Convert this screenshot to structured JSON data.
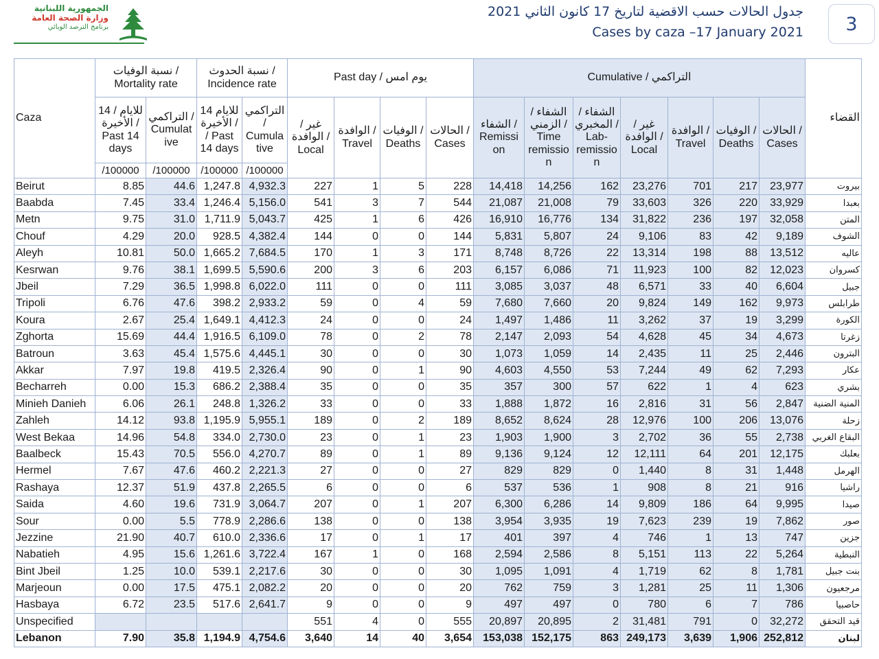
{
  "header": {
    "logo_line1": "الجمهورية اللبنانية",
    "logo_line2": "وزارة الصحة العامة",
    "logo_line3": "برنامج الترصد الوبائي",
    "title_ar": "جدول الحالات حسب الاقضية لتاريخ 17 كانون الثاني 2021",
    "title_en": "Cases by caza –17 January 2021",
    "page_number": "3",
    "logo_color": "#2e8b3e",
    "accent_color": "#d03a2f"
  },
  "table": {
    "headers": {
      "caza": "Caza",
      "mortality_rate": "نسبة الوفيات / Mortality rate",
      "incidence_rate": "نسبة الحدوث / Incidence rate",
      "past_day": "Past day / يوم امس",
      "cumulative": "Cumulative / التراكمي",
      "caza_ar": "القضاء",
      "mort_past14": "14 للايام / الأخيرة / Past 14 days",
      "mort_cumulative": "التراكمي / Cumulat ive",
      "inc_past14": "14 للايام / الأخيرة / Past 14 days",
      "inc_cumulative": "التراكمي / Cumula tive",
      "pd_local": "غير / الوافدة / Local",
      "pd_travel": "الوافدة / Travel",
      "pd_deaths": "الوفيات / Deaths",
      "pd_cases": "الحالات / Cases",
      "cu_remission": "الشفاء / Remissi on",
      "cu_time_remission": "الشفاء / الزمني / Time remissio n",
      "cu_lab_remission": "الشفاء / المخبري / Lab- remissio n",
      "cu_local": "غير / الوافدة / Local",
      "cu_travel": "الوافدة / Travel",
      "cu_deaths": "الوفيات / Deaths",
      "cu_cases": "الحالات / Cases",
      "per100k": "/100000"
    },
    "rows": [
      {
        "caza": "Beirut",
        "mp14": "8.85",
        "mcum": "44.6",
        "ip14": "1,247.8",
        "icum": "4,932.3",
        "pdl": "227",
        "pdt": "1",
        "pdd": "5",
        "pdc": "228",
        "rem": "14,418",
        "trem": "14,256",
        "lrem": "162",
        "loc": "23,276",
        "trv": "701",
        "dth": "217",
        "cas": "23,977",
        "ar": "بيروت"
      },
      {
        "caza": "Baabda",
        "mp14": "7.45",
        "mcum": "33.4",
        "ip14": "1,246.4",
        "icum": "5,156.0",
        "pdl": "541",
        "pdt": "3",
        "pdd": "7",
        "pdc": "544",
        "rem": "21,087",
        "trem": "21,008",
        "lrem": "79",
        "loc": "33,603",
        "trv": "326",
        "dth": "220",
        "cas": "33,929",
        "ar": "بعبدا"
      },
      {
        "caza": "Metn",
        "mp14": "9.75",
        "mcum": "31.0",
        "ip14": "1,711.9",
        "icum": "5,043.7",
        "pdl": "425",
        "pdt": "1",
        "pdd": "6",
        "pdc": "426",
        "rem": "16,910",
        "trem": "16,776",
        "lrem": "134",
        "loc": "31,822",
        "trv": "236",
        "dth": "197",
        "cas": "32,058",
        "ar": "المتن"
      },
      {
        "caza": "Chouf",
        "mp14": "4.29",
        "mcum": "20.0",
        "ip14": "928.5",
        "icum": "4,382.4",
        "pdl": "144",
        "pdt": "0",
        "pdd": "0",
        "pdc": "144",
        "rem": "5,831",
        "trem": "5,807",
        "lrem": "24",
        "loc": "9,106",
        "trv": "83",
        "dth": "42",
        "cas": "9,189",
        "ar": "الشوف"
      },
      {
        "caza": "Aleyh",
        "mp14": "10.81",
        "mcum": "50.0",
        "ip14": "1,665.2",
        "icum": "7,684.5",
        "pdl": "170",
        "pdt": "1",
        "pdd": "3",
        "pdc": "171",
        "rem": "8,748",
        "trem": "8,726",
        "lrem": "22",
        "loc": "13,314",
        "trv": "198",
        "dth": "88",
        "cas": "13,512",
        "ar": "عاليه"
      },
      {
        "caza": "Kesrwan",
        "mp14": "9.76",
        "mcum": "38.1",
        "ip14": "1,699.5",
        "icum": "5,590.6",
        "pdl": "200",
        "pdt": "3",
        "pdd": "6",
        "pdc": "203",
        "rem": "6,157",
        "trem": "6,086",
        "lrem": "71",
        "loc": "11,923",
        "trv": "100",
        "dth": "82",
        "cas": "12,023",
        "ar": "كسروان"
      },
      {
        "caza": "Jbeil",
        "mp14": "7.29",
        "mcum": "36.5",
        "ip14": "1,998.8",
        "icum": "6,022.0",
        "pdl": "111",
        "pdt": "0",
        "pdd": "0",
        "pdc": "111",
        "rem": "3,085",
        "trem": "3,037",
        "lrem": "48",
        "loc": "6,571",
        "trv": "33",
        "dth": "40",
        "cas": "6,604",
        "ar": "جبيل"
      },
      {
        "caza": "Tripoli",
        "mp14": "6.76",
        "mcum": "47.6",
        "ip14": "398.2",
        "icum": "2,933.2",
        "pdl": "59",
        "pdt": "0",
        "pdd": "4",
        "pdc": "59",
        "rem": "7,680",
        "trem": "7,660",
        "lrem": "20",
        "loc": "9,824",
        "trv": "149",
        "dth": "162",
        "cas": "9,973",
        "ar": "طرابلس"
      },
      {
        "caza": "Koura",
        "mp14": "2.67",
        "mcum": "25.4",
        "ip14": "1,649.1",
        "icum": "4,412.3",
        "pdl": "24",
        "pdt": "0",
        "pdd": "0",
        "pdc": "24",
        "rem": "1,497",
        "trem": "1,486",
        "lrem": "11",
        "loc": "3,262",
        "trv": "37",
        "dth": "19",
        "cas": "3,299",
        "ar": "الكورة"
      },
      {
        "caza": "Zghorta",
        "mp14": "15.69",
        "mcum": "44.4",
        "ip14": "1,916.5",
        "icum": "6,109.0",
        "pdl": "78",
        "pdt": "0",
        "pdd": "2",
        "pdc": "78",
        "rem": "2,147",
        "trem": "2,093",
        "lrem": "54",
        "loc": "4,628",
        "trv": "45",
        "dth": "34",
        "cas": "4,673",
        "ar": "زغرتا"
      },
      {
        "caza": "Batroun",
        "mp14": "3.63",
        "mcum": "45.4",
        "ip14": "1,575.6",
        "icum": "4,445.1",
        "pdl": "30",
        "pdt": "0",
        "pdd": "0",
        "pdc": "30",
        "rem": "1,073",
        "trem": "1,059",
        "lrem": "14",
        "loc": "2,435",
        "trv": "11",
        "dth": "25",
        "cas": "2,446",
        "ar": "البترون"
      },
      {
        "caza": "Akkar",
        "mp14": "7.97",
        "mcum": "19.8",
        "ip14": "419.5",
        "icum": "2,326.4",
        "pdl": "90",
        "pdt": "0",
        "pdd": "1",
        "pdc": "90",
        "rem": "4,603",
        "trem": "4,550",
        "lrem": "53",
        "loc": "7,244",
        "trv": "49",
        "dth": "62",
        "cas": "7,293",
        "ar": "عكار"
      },
      {
        "caza": "Becharreh",
        "mp14": "0.00",
        "mcum": "15.3",
        "ip14": "686.2",
        "icum": "2,388.4",
        "pdl": "35",
        "pdt": "0",
        "pdd": "0",
        "pdc": "35",
        "rem": "357",
        "trem": "300",
        "lrem": "57",
        "loc": "622",
        "trv": "1",
        "dth": "4",
        "cas": "623",
        "ar": "بشري"
      },
      {
        "caza": "Minieh Danieh",
        "mp14": "6.06",
        "mcum": "26.1",
        "ip14": "248.8",
        "icum": "1,326.2",
        "pdl": "33",
        "pdt": "0",
        "pdd": "0",
        "pdc": "33",
        "rem": "1,888",
        "trem": "1,872",
        "lrem": "16",
        "loc": "2,816",
        "trv": "31",
        "dth": "56",
        "cas": "2,847",
        "ar": "المنية الضنية"
      },
      {
        "caza": "Zahleh",
        "mp14": "14.12",
        "mcum": "93.8",
        "ip14": "1,195.9",
        "icum": "5,955.1",
        "pdl": "189",
        "pdt": "0",
        "pdd": "2",
        "pdc": "189",
        "rem": "8,652",
        "trem": "8,624",
        "lrem": "28",
        "loc": "12,976",
        "trv": "100",
        "dth": "206",
        "cas": "13,076",
        "ar": "زحلة"
      },
      {
        "caza": "West Bekaa",
        "mp14": "14.96",
        "mcum": "54.8",
        "ip14": "334.0",
        "icum": "2,730.0",
        "pdl": "23",
        "pdt": "0",
        "pdd": "1",
        "pdc": "23",
        "rem": "1,903",
        "trem": "1,900",
        "lrem": "3",
        "loc": "2,702",
        "trv": "36",
        "dth": "55",
        "cas": "2,738",
        "ar": "البقاع الغربي"
      },
      {
        "caza": "Baalbeck",
        "mp14": "15.43",
        "mcum": "70.5",
        "ip14": "556.0",
        "icum": "4,270.7",
        "pdl": "89",
        "pdt": "0",
        "pdd": "1",
        "pdc": "89",
        "rem": "9,136",
        "trem": "9,124",
        "lrem": "12",
        "loc": "12,111",
        "trv": "64",
        "dth": "201",
        "cas": "12,175",
        "ar": "بعلبك"
      },
      {
        "caza": "Hermel",
        "mp14": "7.67",
        "mcum": "47.6",
        "ip14": "460.2",
        "icum": "2,221.3",
        "pdl": "27",
        "pdt": "0",
        "pdd": "0",
        "pdc": "27",
        "rem": "829",
        "trem": "829",
        "lrem": "0",
        "loc": "1,440",
        "trv": "8",
        "dth": "31",
        "cas": "1,448",
        "ar": "الهرمل"
      },
      {
        "caza": "Rashaya",
        "mp14": "12.37",
        "mcum": "51.9",
        "ip14": "437.8",
        "icum": "2,265.5",
        "pdl": "6",
        "pdt": "0",
        "pdd": "0",
        "pdc": "6",
        "rem": "537",
        "trem": "536",
        "lrem": "1",
        "loc": "908",
        "trv": "8",
        "dth": "21",
        "cas": "916",
        "ar": "راشيا"
      },
      {
        "caza": "Saida",
        "mp14": "4.60",
        "mcum": "19.6",
        "ip14": "731.9",
        "icum": "3,064.7",
        "pdl": "207",
        "pdt": "0",
        "pdd": "1",
        "pdc": "207",
        "rem": "6,300",
        "trem": "6,286",
        "lrem": "14",
        "loc": "9,809",
        "trv": "186",
        "dth": "64",
        "cas": "9,995",
        "ar": "صيدا"
      },
      {
        "caza": "Sour",
        "mp14": "0.00",
        "mcum": "5.5",
        "ip14": "778.9",
        "icum": "2,286.6",
        "pdl": "138",
        "pdt": "0",
        "pdd": "0",
        "pdc": "138",
        "rem": "3,954",
        "trem": "3,935",
        "lrem": "19",
        "loc": "7,623",
        "trv": "239",
        "dth": "19",
        "cas": "7,862",
        "ar": "صور"
      },
      {
        "caza": "Jezzine",
        "mp14": "21.90",
        "mcum": "40.7",
        "ip14": "610.0",
        "icum": "2,336.6",
        "pdl": "17",
        "pdt": "0",
        "pdd": "1",
        "pdc": "17",
        "rem": "401",
        "trem": "397",
        "lrem": "4",
        "loc": "746",
        "trv": "1",
        "dth": "13",
        "cas": "747",
        "ar": "جزين"
      },
      {
        "caza": "Nabatieh",
        "mp14": "4.95",
        "mcum": "15.6",
        "ip14": "1,261.6",
        "icum": "3,722.4",
        "pdl": "167",
        "pdt": "1",
        "pdd": "0",
        "pdc": "168",
        "rem": "2,594",
        "trem": "2,586",
        "lrem": "8",
        "loc": "5,151",
        "trv": "113",
        "dth": "22",
        "cas": "5,264",
        "ar": "النبطية"
      },
      {
        "caza": "Bint Jbeil",
        "mp14": "1.25",
        "mcum": "10.0",
        "ip14": "539.1",
        "icum": "2,217.6",
        "pdl": "30",
        "pdt": "0",
        "pdd": "0",
        "pdc": "30",
        "rem": "1,095",
        "trem": "1,091",
        "lrem": "4",
        "loc": "1,719",
        "trv": "62",
        "dth": "8",
        "cas": "1,781",
        "ar": "بنت جبيل"
      },
      {
        "caza": "Marjeoun",
        "mp14": "0.00",
        "mcum": "17.5",
        "ip14": "475.1",
        "icum": "2,082.2",
        "pdl": "20",
        "pdt": "0",
        "pdd": "0",
        "pdc": "20",
        "rem": "762",
        "trem": "759",
        "lrem": "3",
        "loc": "1,281",
        "trv": "25",
        "dth": "11",
        "cas": "1,306",
        "ar": "مرجعيون"
      },
      {
        "caza": "Hasbaya",
        "mp14": "6.72",
        "mcum": "23.5",
        "ip14": "517.6",
        "icum": "2,641.7",
        "pdl": "9",
        "pdt": "0",
        "pdd": "0",
        "pdc": "9",
        "rem": "497",
        "trem": "497",
        "lrem": "0",
        "loc": "780",
        "trv": "6",
        "dth": "7",
        "cas": "786",
        "ar": "حاصبيا"
      },
      {
        "caza": "Unspecified",
        "mp14": "",
        "mcum": "",
        "ip14": "",
        "icum": "",
        "pdl": "551",
        "pdt": "4",
        "pdd": "0",
        "pdc": "555",
        "rem": "20,897",
        "trem": "20,895",
        "lrem": "2",
        "loc": "31,481",
        "trv": "791",
        "dth": "0",
        "cas": "32,272",
        "ar": "قيد التحقق"
      }
    ],
    "total": {
      "caza": "Lebanon",
      "mp14": "7.90",
      "mcum": "35.8",
      "ip14": "1,194.9",
      "icum": "4,754.6",
      "pdl": "3,640",
      "pdt": "14",
      "pdd": "40",
      "pdc": "3,654",
      "rem": "153,038",
      "trem": "152,175",
      "lrem": "863",
      "loc": "249,173",
      "trv": "3,639",
      "dth": "1,906",
      "cas": "252,812",
      "ar": "لبنان"
    },
    "shade_color": "#dde6f2",
    "border_color": "#9fb2d3"
  }
}
